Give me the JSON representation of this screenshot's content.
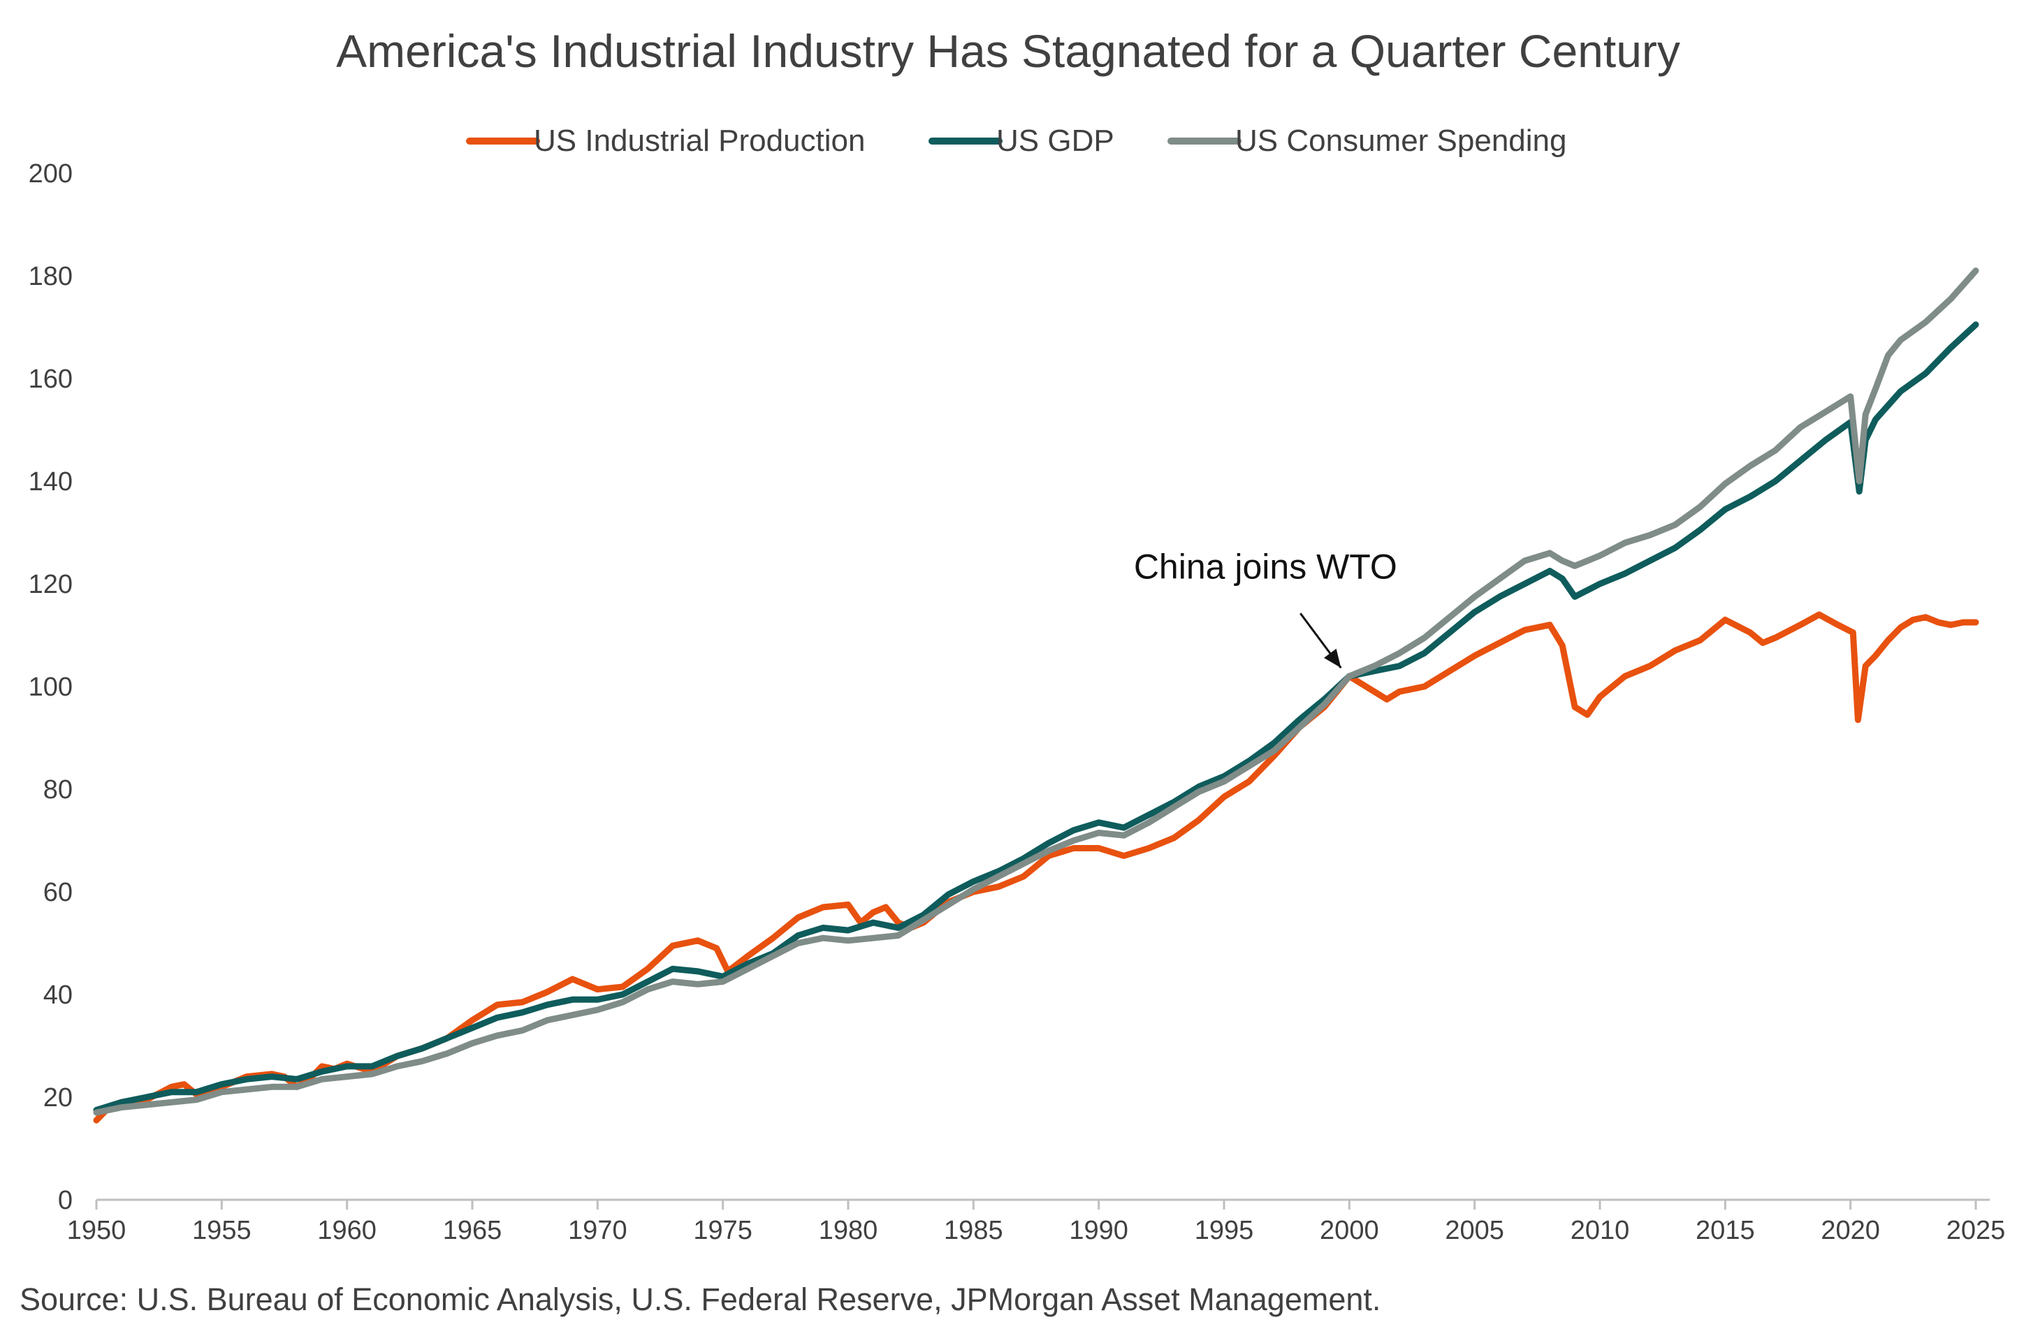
{
  "chart_data": {
    "type": "line",
    "title": "America's Industrial Industry Has Stagnated for a Quarter Century",
    "xlabel": "",
    "ylabel": "",
    "xlim": [
      1950,
      2025
    ],
    "ylim": [
      0,
      200
    ],
    "x_ticks": [
      "1950",
      "1955",
      "1960",
      "1965",
      "1970",
      "1975",
      "1980",
      "1985",
      "1990",
      "1995",
      "2000",
      "2005",
      "2010",
      "2015",
      "2020",
      "2025"
    ],
    "y_ticks": [
      "0",
      "20",
      "40",
      "60",
      "80",
      "100",
      "120",
      "140",
      "160",
      "180",
      "200"
    ],
    "grid": false,
    "legend_position": "top",
    "series": [
      {
        "name": "US Industrial Production",
        "color": "#E8510E",
        "points": [
          [
            1950,
            15.5
          ],
          [
            1950.5,
            18
          ],
          [
            1951,
            19
          ],
          [
            1952,
            19.5
          ],
          [
            1953,
            22
          ],
          [
            1953.5,
            22.5
          ],
          [
            1954,
            20.5
          ],
          [
            1955,
            22
          ],
          [
            1956,
            24
          ],
          [
            1957,
            24.5
          ],
          [
            1957.5,
            24
          ],
          [
            1958,
            22
          ],
          [
            1958.5,
            23.5
          ],
          [
            1959,
            26
          ],
          [
            1959.5,
            25.5
          ],
          [
            1960,
            26.5
          ],
          [
            1961,
            25
          ],
          [
            1962,
            28
          ],
          [
            1963,
            29.5
          ],
          [
            1964,
            31.5
          ],
          [
            1965,
            35
          ],
          [
            1966,
            38
          ],
          [
            1967,
            38.5
          ],
          [
            1968,
            40.5
          ],
          [
            1969,
            43
          ],
          [
            1970,
            41
          ],
          [
            1971,
            41.5
          ],
          [
            1972,
            45
          ],
          [
            1973,
            49.5
          ],
          [
            1974,
            50.5
          ],
          [
            1974.75,
            49
          ],
          [
            1975.2,
            44.5
          ],
          [
            1976,
            47.5
          ],
          [
            1977,
            51
          ],
          [
            1978,
            55
          ],
          [
            1979,
            57
          ],
          [
            1980,
            57.5
          ],
          [
            1980.5,
            54
          ],
          [
            1981,
            56
          ],
          [
            1981.5,
            57
          ],
          [
            1982,
            54
          ],
          [
            1982.5,
            53
          ],
          [
            1983,
            54
          ],
          [
            1984,
            58
          ],
          [
            1985,
            60
          ],
          [
            1986,
            61
          ],
          [
            1987,
            63
          ],
          [
            1988,
            67
          ],
          [
            1989,
            68.5
          ],
          [
            1990,
            68.5
          ],
          [
            1991,
            67
          ],
          [
            1992,
            68.5
          ],
          [
            1993,
            70.5
          ],
          [
            1994,
            74
          ],
          [
            1995,
            78.5
          ],
          [
            1996,
            81.5
          ],
          [
            1997,
            86.5
          ],
          [
            1998,
            92
          ],
          [
            1999,
            96
          ],
          [
            2000,
            102
          ],
          [
            2001,
            99
          ],
          [
            2001.5,
            97.5
          ],
          [
            2002,
            99
          ],
          [
            2003,
            100
          ],
          [
            2004,
            103
          ],
          [
            2005,
            106
          ],
          [
            2006,
            108.5
          ],
          [
            2007,
            111
          ],
          [
            2008,
            112
          ],
          [
            2008.5,
            108
          ],
          [
            2009,
            96
          ],
          [
            2009.5,
            94.5
          ],
          [
            2010,
            98
          ],
          [
            2011,
            102
          ],
          [
            2012,
            104
          ],
          [
            2013,
            107
          ],
          [
            2014,
            109
          ],
          [
            2015,
            113
          ],
          [
            2016,
            110.5
          ],
          [
            2016.5,
            108.5
          ],
          [
            2017,
            109.5
          ],
          [
            2018,
            112
          ],
          [
            2018.75,
            114
          ],
          [
            2019.5,
            112
          ],
          [
            2020.1,
            110.5
          ],
          [
            2020.3,
            93.5
          ],
          [
            2020.6,
            104
          ],
          [
            2021,
            106
          ],
          [
            2021.5,
            109
          ],
          [
            2022,
            111.5
          ],
          [
            2022.5,
            113
          ],
          [
            2023,
            113.5
          ],
          [
            2023.5,
            112.5
          ],
          [
            2024,
            112
          ],
          [
            2024.5,
            112.5
          ],
          [
            2025,
            112.5
          ]
        ]
      },
      {
        "name": "US GDP",
        "color": "#0F5C5C",
        "points": [
          [
            1950,
            17.5
          ],
          [
            1951,
            19
          ],
          [
            1952,
            20
          ],
          [
            1953,
            21
          ],
          [
            1954,
            21
          ],
          [
            1955,
            22.5
          ],
          [
            1956,
            23.5
          ],
          [
            1957,
            24
          ],
          [
            1958,
            23.5
          ],
          [
            1959,
            25
          ],
          [
            1960,
            26
          ],
          [
            1961,
            26
          ],
          [
            1962,
            28
          ],
          [
            1963,
            29.5
          ],
          [
            1964,
            31.5
          ],
          [
            1965,
            33.5
          ],
          [
            1966,
            35.5
          ],
          [
            1967,
            36.5
          ],
          [
            1968,
            38
          ],
          [
            1969,
            39
          ],
          [
            1970,
            39
          ],
          [
            1971,
            40
          ],
          [
            1972,
            42.5
          ],
          [
            1973,
            45
          ],
          [
            1974,
            44.5
          ],
          [
            1975,
            43.5
          ],
          [
            1976,
            46
          ],
          [
            1977,
            48
          ],
          [
            1978,
            51.5
          ],
          [
            1979,
            53
          ],
          [
            1980,
            52.5
          ],
          [
            1981,
            54
          ],
          [
            1982,
            53
          ],
          [
            1983,
            55.5
          ],
          [
            1984,
            59.5
          ],
          [
            1985,
            62
          ],
          [
            1986,
            64
          ],
          [
            1987,
            66.5
          ],
          [
            1988,
            69.5
          ],
          [
            1989,
            72
          ],
          [
            1990,
            73.5
          ],
          [
            1991,
            72.5
          ],
          [
            1992,
            75
          ],
          [
            1993,
            77.5
          ],
          [
            1994,
            80.5
          ],
          [
            1995,
            82.5
          ],
          [
            1996,
            85.5
          ],
          [
            1997,
            89
          ],
          [
            1998,
            93.5
          ],
          [
            1999,
            97.5
          ],
          [
            2000,
            102
          ],
          [
            2001,
            103
          ],
          [
            2002,
            104
          ],
          [
            2003,
            106.5
          ],
          [
            2004,
            110.5
          ],
          [
            2005,
            114.5
          ],
          [
            2006,
            117.5
          ],
          [
            2007,
            120
          ],
          [
            2008,
            122.5
          ],
          [
            2008.5,
            121
          ],
          [
            2009,
            117.5
          ],
          [
            2010,
            120
          ],
          [
            2011,
            122
          ],
          [
            2012,
            124.5
          ],
          [
            2013,
            127
          ],
          [
            2014,
            130.5
          ],
          [
            2015,
            134.5
          ],
          [
            2016,
            137
          ],
          [
            2017,
            140
          ],
          [
            2018,
            144
          ],
          [
            2019,
            148
          ],
          [
            2020,
            151.5
          ],
          [
            2020.35,
            138
          ],
          [
            2020.6,
            148
          ],
          [
            2021,
            152
          ],
          [
            2022,
            157.5
          ],
          [
            2023,
            161
          ],
          [
            2024,
            166
          ],
          [
            2025,
            170.5
          ]
        ]
      },
      {
        "name": "US Consumer Spending",
        "color": "#7F8C88",
        "points": [
          [
            1950,
            17
          ],
          [
            1951,
            18
          ],
          [
            1952,
            18.5
          ],
          [
            1953,
            19
          ],
          [
            1954,
            19.5
          ],
          [
            1955,
            21
          ],
          [
            1956,
            21.5
          ],
          [
            1957,
            22
          ],
          [
            1958,
            22
          ],
          [
            1959,
            23.5
          ],
          [
            1960,
            24
          ],
          [
            1961,
            24.5
          ],
          [
            1962,
            26
          ],
          [
            1963,
            27
          ],
          [
            1964,
            28.5
          ],
          [
            1965,
            30.5
          ],
          [
            1966,
            32
          ],
          [
            1967,
            33
          ],
          [
            1968,
            35
          ],
          [
            1969,
            36
          ],
          [
            1970,
            37
          ],
          [
            1971,
            38.5
          ],
          [
            1972,
            41
          ],
          [
            1973,
            42.5
          ],
          [
            1974,
            42
          ],
          [
            1975,
            42.5
          ],
          [
            1976,
            45
          ],
          [
            1977,
            47.5
          ],
          [
            1978,
            50
          ],
          [
            1979,
            51
          ],
          [
            1980,
            50.5
          ],
          [
            1981,
            51
          ],
          [
            1982,
            51.5
          ],
          [
            1983,
            54.5
          ],
          [
            1984,
            57.5
          ],
          [
            1985,
            60.5
          ],
          [
            1986,
            63
          ],
          [
            1987,
            65.5
          ],
          [
            1988,
            68
          ],
          [
            1989,
            70
          ],
          [
            1990,
            71.5
          ],
          [
            1991,
            71
          ],
          [
            1992,
            73.5
          ],
          [
            1993,
            76.5
          ],
          [
            1994,
            79.5
          ],
          [
            1995,
            81.5
          ],
          [
            1996,
            84.5
          ],
          [
            1997,
            87.5
          ],
          [
            1998,
            92
          ],
          [
            1999,
            96.5
          ],
          [
            2000,
            102
          ],
          [
            2001,
            104
          ],
          [
            2002,
            106.5
          ],
          [
            2003,
            109.5
          ],
          [
            2004,
            113.5
          ],
          [
            2005,
            117.5
          ],
          [
            2006,
            121
          ],
          [
            2007,
            124.5
          ],
          [
            2008,
            126
          ],
          [
            2008.5,
            124.5
          ],
          [
            2009,
            123.5
          ],
          [
            2010,
            125.5
          ],
          [
            2011,
            128
          ],
          [
            2012,
            129.5
          ],
          [
            2013,
            131.5
          ],
          [
            2014,
            135
          ],
          [
            2015,
            139.5
          ],
          [
            2016,
            143
          ],
          [
            2017,
            146
          ],
          [
            2018,
            150.5
          ],
          [
            2019,
            153.5
          ],
          [
            2020,
            156.5
          ],
          [
            2020.35,
            140
          ],
          [
            2020.6,
            153
          ],
          [
            2021,
            158
          ],
          [
            2021.5,
            164.5
          ],
          [
            2022,
            167.5
          ],
          [
            2023,
            171
          ],
          [
            2024,
            175.5
          ],
          [
            2025,
            181
          ]
        ]
      }
    ],
    "annotations": [
      {
        "text": "China joins WTO",
        "x": 2000,
        "y": 102
      }
    ],
    "source": "Source: U.S. Bureau of Economic Analysis, U.S. Federal Reserve, JPMorgan Asset Management."
  }
}
